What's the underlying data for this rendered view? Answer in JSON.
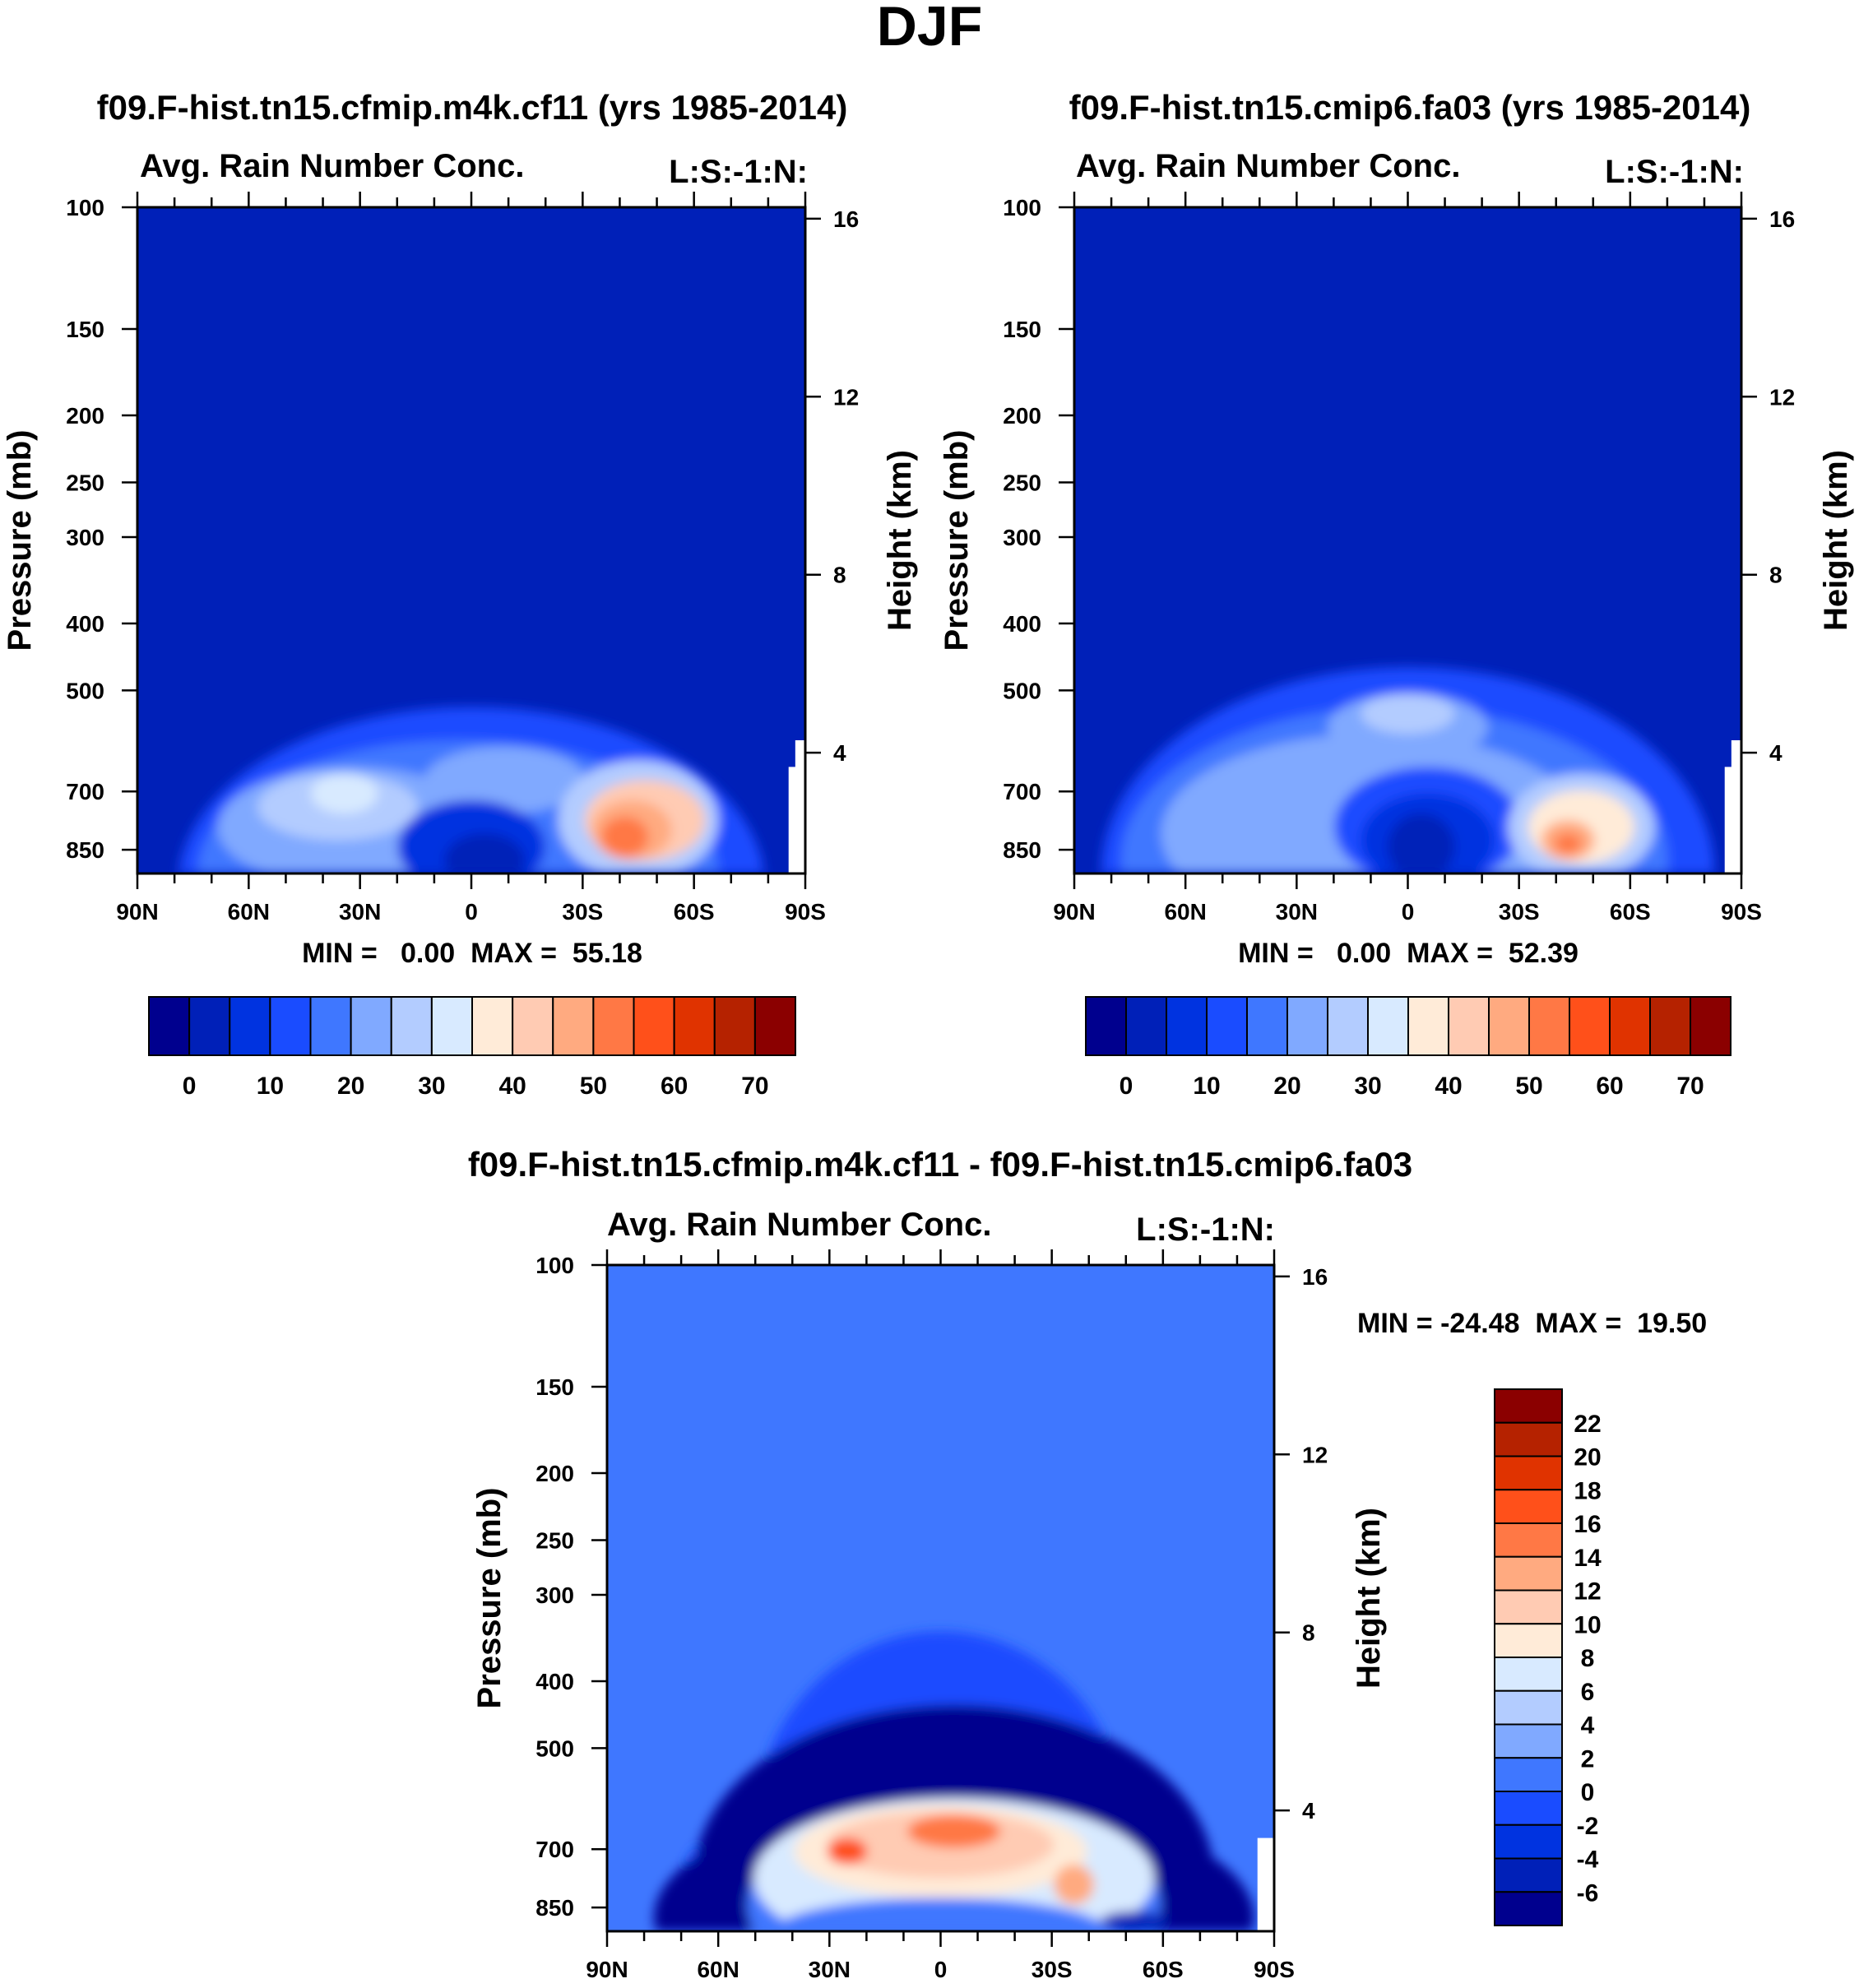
{
  "header": {
    "title": "DJF"
  },
  "palette": [
    "#00008E",
    "#0020B8",
    "#0033E0",
    "#1A4CFF",
    "#3F77FF",
    "#80A9FF",
    "#B3CCFF",
    "#D8EAFF",
    "#FFEBD8",
    "#FFCBB3",
    "#FFAA80",
    "#FF7845",
    "#FF501A",
    "#E03300",
    "#B52200",
    "#8B0000"
  ],
  "panels": [
    {
      "title": "f09.F-hist.tn15.cfmip.m4k.cf11 (yrs 1985-2014)",
      "variable": "Avg. Rain Number Conc.",
      "tag": "L:S:-1:N:",
      "stats": "MIN =   0.00  MAX =  55.18"
    },
    {
      "title": "f09.F-hist.tn15.cmip6.fa03 (yrs 1985-2014)",
      "variable": "Avg. Rain Number Conc.",
      "tag": "L:S:-1:N:",
      "stats": "MIN =   0.00  MAX =  52.39"
    },
    {
      "title": "f09.F-hist.tn15.cfmip.m4k.cf11 - f09.F-hist.tn15.cmip6.fa03",
      "variable": "Avg. Rain Number Conc.",
      "tag": "L:S:-1:N:",
      "stats": "MIN = -24.48  MAX =  19.50"
    }
  ],
  "chart_data": [
    {
      "type": "heatmap",
      "title": "f09.F-hist.tn15.cfmip.m4k.cf11 (yrs 1985-2014)",
      "ylabel": "Pressure (mb)",
      "y2label": "Height (km)",
      "x_ticks": [
        90,
        60,
        30,
        0,
        -30,
        -60,
        -90
      ],
      "x_tick_labels": [
        "90N",
        "60N",
        "30N",
        "0",
        "30S",
        "60S",
        "90S"
      ],
      "y_ticks": [
        100,
        150,
        200,
        250,
        300,
        400,
        500,
        700,
        850
      ],
      "y2_ticks": [
        16,
        12,
        8,
        4
      ],
      "min": 0.0,
      "max": 55.18,
      "colorbar_levels": [
        0,
        5,
        10,
        15,
        20,
        25,
        30,
        35,
        40,
        45,
        50,
        55,
        60,
        65,
        70
      ],
      "colorbar_labels": [
        "0",
        "10",
        "20",
        "30",
        "40",
        "50",
        "60",
        "70"
      ]
    },
    {
      "type": "heatmap",
      "title": "f09.F-hist.tn15.cmip6.fa03 (yrs 1985-2014)",
      "ylabel": "Pressure (mb)",
      "y2label": "Height (km)",
      "x_ticks": [
        90,
        60,
        30,
        0,
        -30,
        -60,
        -90
      ],
      "x_tick_labels": [
        "90N",
        "60N",
        "30N",
        "0",
        "30S",
        "60S",
        "90S"
      ],
      "y_ticks": [
        100,
        150,
        200,
        250,
        300,
        400,
        500,
        700,
        850
      ],
      "y2_ticks": [
        16,
        12,
        8,
        4
      ],
      "min": 0.0,
      "max": 52.39,
      "colorbar_levels": [
        0,
        5,
        10,
        15,
        20,
        25,
        30,
        35,
        40,
        45,
        50,
        55,
        60,
        65,
        70
      ],
      "colorbar_labels": [
        "0",
        "10",
        "20",
        "30",
        "40",
        "50",
        "60",
        "70"
      ]
    },
    {
      "type": "heatmap",
      "title": "f09.F-hist.tn15.cfmip.m4k.cf11 - f09.F-hist.tn15.cmip6.fa03",
      "ylabel": "Pressure (mb)",
      "y2label": "Height (km)",
      "x_ticks": [
        90,
        60,
        30,
        0,
        -30,
        -60,
        -90
      ],
      "x_tick_labels": [
        "90N",
        "60N",
        "30N",
        "0",
        "30S",
        "60S",
        "90S"
      ],
      "y_ticks": [
        100,
        150,
        200,
        250,
        300,
        400,
        500,
        700,
        850
      ],
      "y2_ticks": [
        16,
        12,
        8,
        4
      ],
      "min": -24.48,
      "max": 19.5,
      "colorbar_levels": [
        22,
        20,
        18,
        16,
        14,
        12,
        10,
        8,
        6,
        4,
        2,
        0,
        -2,
        -4,
        -6
      ],
      "colorbar_labels": [
        "22",
        "20",
        "18",
        "16",
        "14",
        "12",
        "10",
        "8",
        "6",
        "4",
        "2",
        "0",
        "-2",
        "-4",
        "-6"
      ]
    }
  ]
}
